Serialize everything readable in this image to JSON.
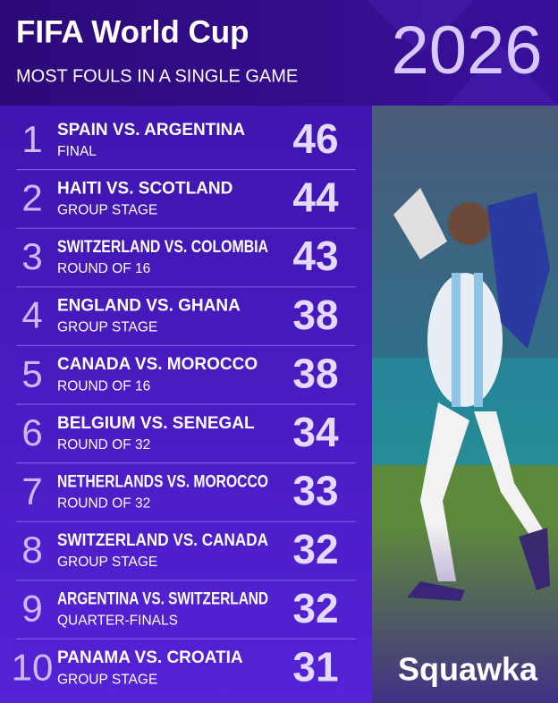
{
  "header": {
    "title": "FIFA World Cup",
    "subtitle": "MOST FOULS IN A SINGLE GAME",
    "year": "2026"
  },
  "rows": [
    {
      "rank": 1,
      "match": "SPAIN VS. ARGENTINA",
      "stage": "FINAL",
      "fouls": 46
    },
    {
      "rank": 2,
      "match": "HAITI VS. SCOTLAND",
      "stage": "GROUP STAGE",
      "fouls": 44
    },
    {
      "rank": 3,
      "match": "SWITZERLAND VS. COLOMBIA",
      "stage": "ROUND OF 16",
      "fouls": 43
    },
    {
      "rank": 4,
      "match": "ENGLAND VS. GHANA",
      "stage": "GROUP STAGE",
      "fouls": 38
    },
    {
      "rank": 5,
      "match": "CANADA VS. MOROCCO",
      "stage": "ROUND OF 16",
      "fouls": 38
    },
    {
      "rank": 6,
      "match": "BELGIUM VS. SENEGAL",
      "stage": "ROUND OF 32",
      "fouls": 34
    },
    {
      "rank": 7,
      "match": "NETHERLANDS VS. MOROCCO",
      "stage": "ROUND OF 32",
      "fouls": 33
    },
    {
      "rank": 8,
      "match": "SWITZERLAND VS. CANADA",
      "stage": "GROUP STAGE",
      "fouls": 32
    },
    {
      "rank": 9,
      "match": "ARGENTINA VS. SWITZERLAND",
      "stage": "QUARTER-FINALS",
      "fouls": 32
    },
    {
      "rank": 10,
      "match": "PANAMA VS. CROATIA",
      "stage": "GROUP STAGE",
      "fouls": 31
    }
  ],
  "brand": "Squawka"
}
